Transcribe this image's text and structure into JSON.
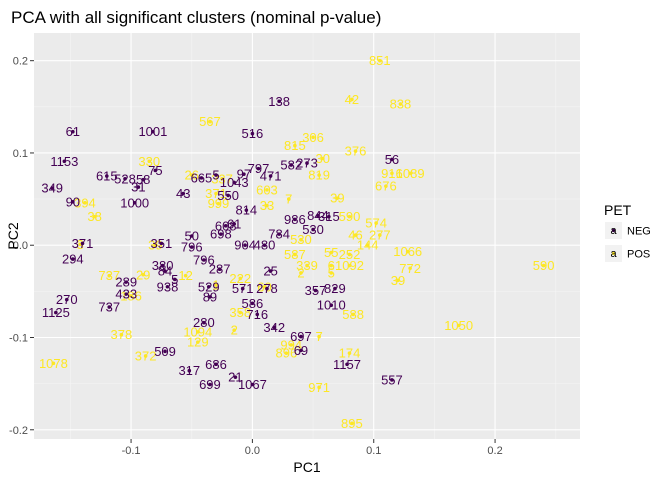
{
  "chart_data": {
    "type": "scatter",
    "title": "PCA with all significant clusters (nominal p-value)",
    "xlabel": "PC1",
    "ylabel": "PC2",
    "xlim": [
      -0.18,
      0.27
    ],
    "ylim": [
      -0.21,
      0.23
    ],
    "x_ticks": [
      -0.1,
      0.0,
      0.1,
      0.2
    ],
    "x_tick_labels": [
      "-0.1",
      "0.0",
      "0.1",
      "0.2"
    ],
    "y_ticks": [
      -0.2,
      -0.1,
      0.0,
      0.1,
      0.2
    ],
    "y_tick_labels": [
      "-0.2",
      "-0.1",
      "0.0",
      "0.1",
      "0.2"
    ],
    "grid": true,
    "panel_background": "#ebebeb",
    "legend": {
      "title": "PET",
      "position": "right",
      "entries": [
        {
          "label": "NEG",
          "color": "#440154",
          "key_glyph": "a"
        },
        {
          "label": "POS",
          "color": "#fde725",
          "key_glyph": "a"
        }
      ]
    },
    "series": [
      {
        "name": "NEG",
        "color": "#440154",
        "points": [
          {
            "x": 0.022,
            "y": 0.156,
            "label": "138"
          },
          {
            "x": -0.148,
            "y": 0.123,
            "label": "61"
          },
          {
            "x": -0.082,
            "y": 0.123,
            "label": "1001"
          },
          {
            "x": 0.0,
            "y": 0.121,
            "label": "516"
          },
          {
            "x": -0.155,
            "y": 0.091,
            "label": "1153"
          },
          {
            "x": 0.032,
            "y": 0.087,
            "label": "582"
          },
          {
            "x": 0.045,
            "y": 0.089,
            "label": "273"
          },
          {
            "x": 0.115,
            "y": 0.093,
            "label": "56"
          },
          {
            "x": -0.12,
            "y": 0.075,
            "label": "615"
          },
          {
            "x": -0.105,
            "y": 0.072,
            "label": "528"
          },
          {
            "x": -0.09,
            "y": 0.071,
            "label": "58"
          },
          {
            "x": -0.08,
            "y": 0.081,
            "label": "75"
          },
          {
            "x": -0.042,
            "y": 0.073,
            "label": "665"
          },
          {
            "x": -0.03,
            "y": 0.076,
            "label": "5"
          },
          {
            "x": -0.015,
            "y": 0.068,
            "label": "1043"
          },
          {
            "x": -0.007,
            "y": 0.077,
            "label": "97"
          },
          {
            "x": 0.005,
            "y": 0.083,
            "label": "797"
          },
          {
            "x": 0.015,
            "y": 0.075,
            "label": "471"
          },
          {
            "x": -0.165,
            "y": 0.062,
            "label": "349"
          },
          {
            "x": -0.094,
            "y": 0.063,
            "label": "31"
          },
          {
            "x": -0.148,
            "y": 0.047,
            "label": "90"
          },
          {
            "x": -0.097,
            "y": 0.046,
            "label": "1000"
          },
          {
            "x": -0.057,
            "y": 0.056,
            "label": "43"
          },
          {
            "x": -0.02,
            "y": 0.054,
            "label": "550"
          },
          {
            "x": -0.005,
            "y": 0.038,
            "label": "814"
          },
          {
            "x": 0.054,
            "y": 0.032,
            "label": "844"
          },
          {
            "x": 0.063,
            "y": 0.031,
            "label": "315"
          },
          {
            "x": 0.035,
            "y": 0.028,
            "label": "986"
          },
          {
            "x": -0.015,
            "y": 0.023,
            "label": "61"
          },
          {
            "x": -0.022,
            "y": 0.021,
            "label": "608"
          },
          {
            "x": -0.026,
            "y": 0.012,
            "label": "698"
          },
          {
            "x": -0.05,
            "y": 0.01,
            "label": "50"
          },
          {
            "x": 0.022,
            "y": 0.012,
            "label": "784"
          },
          {
            "x": 0.05,
            "y": 0.017,
            "label": "530"
          },
          {
            "x": -0.006,
            "y": 0.0,
            "label": "904"
          },
          {
            "x": 0.01,
            "y": 0.0,
            "label": "480"
          },
          {
            "x": -0.14,
            "y": 0.002,
            "label": "371"
          },
          {
            "x": -0.075,
            "y": 0.002,
            "label": "351"
          },
          {
            "x": -0.05,
            "y": -0.002,
            "label": "796"
          },
          {
            "x": -0.148,
            "y": -0.015,
            "label": "294"
          },
          {
            "x": -0.04,
            "y": -0.016,
            "label": "796"
          },
          {
            "x": -0.074,
            "y": -0.022,
            "label": "380"
          },
          {
            "x": -0.072,
            "y": -0.028,
            "label": "84"
          },
          {
            "x": -0.027,
            "y": -0.026,
            "label": "287"
          },
          {
            "x": 0.015,
            "y": -0.028,
            "label": "25"
          },
          {
            "x": -0.104,
            "y": -0.04,
            "label": "289"
          },
          {
            "x": -0.064,
            "y": -0.037,
            "label": "5"
          },
          {
            "x": -0.07,
            "y": -0.045,
            "label": "938"
          },
          {
            "x": -0.036,
            "y": -0.045,
            "label": "529"
          },
          {
            "x": -0.008,
            "y": -0.047,
            "label": "571"
          },
          {
            "x": 0.012,
            "y": -0.047,
            "label": "278"
          },
          {
            "x": 0.052,
            "y": -0.049,
            "label": "357"
          },
          {
            "x": 0.068,
            "y": -0.047,
            "label": "829"
          },
          {
            "x": -0.104,
            "y": -0.053,
            "label": "433"
          },
          {
            "x": -0.035,
            "y": -0.056,
            "label": "89"
          },
          {
            "x": -0.153,
            "y": -0.059,
            "label": "270"
          },
          {
            "x": 0.0,
            "y": -0.063,
            "label": "586"
          },
          {
            "x": 0.065,
            "y": -0.065,
            "label": "1010"
          },
          {
            "x": -0.118,
            "y": -0.067,
            "label": "737"
          },
          {
            "x": -0.162,
            "y": -0.073,
            "label": "1125"
          },
          {
            "x": 0.004,
            "y": -0.075,
            "label": "716"
          },
          {
            "x": -0.04,
            "y": -0.084,
            "label": "280"
          },
          {
            "x": 0.018,
            "y": -0.089,
            "label": "342"
          },
          {
            "x": 0.04,
            "y": -0.099,
            "label": "697"
          },
          {
            "x": 0.04,
            "y": -0.114,
            "label": "69"
          },
          {
            "x": -0.072,
            "y": -0.115,
            "label": "509"
          },
          {
            "x": -0.03,
            "y": -0.129,
            "label": "686"
          },
          {
            "x": -0.052,
            "y": -0.136,
            "label": "317"
          },
          {
            "x": 0.078,
            "y": -0.129,
            "label": "1157"
          },
          {
            "x": -0.014,
            "y": -0.143,
            "label": "21"
          },
          {
            "x": -0.035,
            "y": -0.151,
            "label": "699"
          },
          {
            "x": 0.0,
            "y": -0.151,
            "label": "1067"
          },
          {
            "x": 0.115,
            "y": -0.146,
            "label": "557"
          }
        ]
      },
      {
        "name": "POS",
        "color": "#fde725",
        "points": [
          {
            "x": 0.105,
            "y": 0.2,
            "label": "851"
          },
          {
            "x": 0.082,
            "y": 0.158,
            "label": "42"
          },
          {
            "x": 0.122,
            "y": 0.153,
            "label": "838"
          },
          {
            "x": -0.035,
            "y": 0.134,
            "label": "567"
          },
          {
            "x": 0.05,
            "y": 0.117,
            "label": "306"
          },
          {
            "x": 0.035,
            "y": 0.108,
            "label": "815"
          },
          {
            "x": 0.085,
            "y": 0.102,
            "label": "376"
          },
          {
            "x": -0.085,
            "y": 0.091,
            "label": "330"
          },
          {
            "x": 0.058,
            "y": 0.094,
            "label": "30"
          },
          {
            "x": 0.115,
            "y": 0.078,
            "label": "916"
          },
          {
            "x": 0.13,
            "y": 0.078,
            "label": "1089"
          },
          {
            "x": -0.05,
            "y": 0.076,
            "label": "26"
          },
          {
            "x": -0.025,
            "y": 0.072,
            "label": "337"
          },
          {
            "x": 0.055,
            "y": 0.076,
            "label": "819"
          },
          {
            "x": 0.11,
            "y": 0.064,
            "label": "676"
          },
          {
            "x": -0.03,
            "y": 0.056,
            "label": "371"
          },
          {
            "x": 0.012,
            "y": 0.06,
            "label": "603"
          },
          {
            "x": 0.03,
            "y": 0.05,
            "label": "7"
          },
          {
            "x": 0.07,
            "y": 0.051,
            "label": "39"
          },
          {
            "x": -0.138,
            "y": 0.046,
            "label": "394"
          },
          {
            "x": -0.028,
            "y": 0.045,
            "label": "999"
          },
          {
            "x": 0.012,
            "y": 0.043,
            "label": "33"
          },
          {
            "x": -0.13,
            "y": 0.031,
            "label": "38"
          },
          {
            "x": 0.08,
            "y": 0.031,
            "label": "590"
          },
          {
            "x": 0.102,
            "y": 0.024,
            "label": "574"
          },
          {
            "x": 0.04,
            "y": 0.006,
            "label": "530"
          },
          {
            "x": 0.085,
            "y": 0.011,
            "label": "46"
          },
          {
            "x": 0.105,
            "y": 0.011,
            "label": "277"
          },
          {
            "x": 0.095,
            "y": 0.0,
            "label": "144"
          },
          {
            "x": -0.08,
            "y": 0.0,
            "label": "39"
          },
          {
            "x": 0.035,
            "y": -0.01,
            "label": "587"
          },
          {
            "x": 0.065,
            "y": -0.008,
            "label": "55"
          },
          {
            "x": 0.08,
            "y": -0.01,
            "label": "252"
          },
          {
            "x": 0.128,
            "y": -0.007,
            "label": "1066"
          },
          {
            "x": -0.142,
            "y": 0.001,
            "label": "3"
          },
          {
            "x": 0.045,
            "y": -0.022,
            "label": "339"
          },
          {
            "x": 0.065,
            "y": -0.022,
            "label": "6"
          },
          {
            "x": 0.08,
            "y": -0.022,
            "label": "1092"
          },
          {
            "x": 0.24,
            "y": -0.022,
            "label": "590"
          },
          {
            "x": 0.13,
            "y": -0.025,
            "label": "772"
          },
          {
            "x": -0.118,
            "y": -0.033,
            "label": "737"
          },
          {
            "x": -0.09,
            "y": -0.032,
            "label": "29"
          },
          {
            "x": -0.055,
            "y": -0.033,
            "label": "12"
          },
          {
            "x": -0.01,
            "y": -0.036,
            "label": "222"
          },
          {
            "x": 0.04,
            "y": -0.03,
            "label": "2"
          },
          {
            "x": 0.065,
            "y": -0.03,
            "label": "5"
          },
          {
            "x": 0.12,
            "y": -0.038,
            "label": "39"
          },
          {
            "x": -0.03,
            "y": -0.043,
            "label": "1"
          },
          {
            "x": 0.01,
            "y": -0.045,
            "label": "60"
          },
          {
            "x": -0.1,
            "y": -0.055,
            "label": "186"
          },
          {
            "x": 0.083,
            "y": -0.075,
            "label": "588"
          },
          {
            "x": 0.17,
            "y": -0.087,
            "label": "1050"
          },
          {
            "x": -0.01,
            "y": -0.073,
            "label": "358"
          },
          {
            "x": -0.045,
            "y": -0.094,
            "label": "1094"
          },
          {
            "x": -0.015,
            "y": -0.092,
            "label": "2"
          },
          {
            "x": -0.108,
            "y": -0.097,
            "label": "378"
          },
          {
            "x": 0.055,
            "y": -0.099,
            "label": "7"
          },
          {
            "x": 0.032,
            "y": -0.108,
            "label": "994"
          },
          {
            "x": 0.028,
            "y": -0.117,
            "label": "896"
          },
          {
            "x": 0.08,
            "y": -0.117,
            "label": "174"
          },
          {
            "x": -0.088,
            "y": -0.12,
            "label": "372"
          },
          {
            "x": -0.045,
            "y": -0.105,
            "label": "129"
          },
          {
            "x": -0.164,
            "y": -0.128,
            "label": "1078"
          },
          {
            "x": 0.055,
            "y": -0.154,
            "label": "971"
          },
          {
            "x": 0.082,
            "y": -0.193,
            "label": "895"
          }
        ]
      }
    ]
  }
}
